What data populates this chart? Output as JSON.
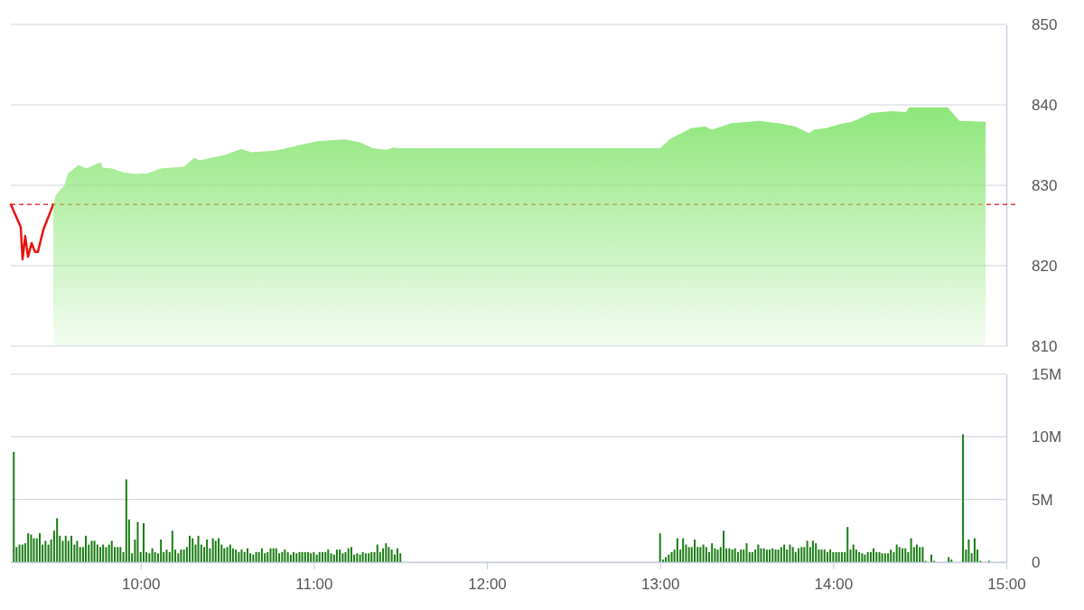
{
  "chart_data": [
    {
      "type": "area",
      "xlim": [
        9.25,
        15
      ],
      "ylim": [
        810,
        850
      ],
      "yticks": [
        810,
        820,
        830,
        840,
        850
      ],
      "grid": "y",
      "tick_labels": "y",
      "ref_lines": [
        {
          "axis": "y",
          "value": 827.6,
          "color": "#e53935",
          "line_style": "dashed"
        }
      ],
      "series": [
        {
          "type": "line",
          "color": "#e8120c",
          "x": [
            9.25,
            9.307,
            9.318,
            9.333,
            9.349,
            9.37,
            9.39,
            9.406,
            9.438,
            9.495
          ],
          "values": [
            827.6,
            824.8,
            820.8,
            823.7,
            821.1,
            822.8,
            821.7,
            821.7,
            824.5,
            827.6
          ]
        },
        {
          "color": "#8ee67a",
          "x": [
            9.495,
            9.51,
            9.56,
            9.58,
            9.64,
            9.69,
            9.77,
            9.78,
            9.83,
            9.9,
            9.97,
            10.04,
            10.12,
            10.25,
            10.31,
            10.34,
            10.49,
            10.58,
            10.64,
            10.77,
            10.82,
            10.94,
            11.03,
            11.18,
            11.27,
            11.34,
            11.42,
            11.46,
            11.49,
            13.0,
            13.06,
            13.18,
            13.26,
            13.3,
            13.41,
            13.57,
            13.69,
            13.78,
            13.86,
            13.89,
            13.96,
            14.04,
            14.11,
            14.15,
            14.22,
            14.34,
            14.42,
            14.44,
            14.66,
            14.73,
            14.88
          ],
          "values": [
            827.6,
            828.8,
            830.0,
            831.5,
            832.5,
            832.1,
            832.9,
            832.2,
            832.1,
            831.6,
            831.4,
            831.5,
            832.1,
            832.3,
            833.4,
            833.1,
            833.8,
            834.5,
            834.1,
            834.3,
            834.5,
            835.1,
            835.5,
            835.7,
            835.3,
            834.6,
            834.4,
            834.7,
            834.6,
            834.6,
            835.8,
            837.1,
            837.3,
            836.9,
            837.7,
            838.0,
            837.7,
            837.3,
            836.5,
            836.9,
            837.1,
            837.6,
            837.9,
            838.3,
            839.0,
            839.2,
            839.1,
            839.7,
            839.7,
            838.0,
            837.9
          ]
        }
      ]
    },
    {
      "type": "bar",
      "xlim": [
        9.25,
        15
      ],
      "xticks": [
        {
          "value": 10,
          "label": "10:00"
        },
        {
          "value": 11,
          "label": "11:00"
        },
        {
          "value": 12,
          "label": "12:00"
        },
        {
          "value": 13,
          "label": "13:00"
        },
        {
          "value": 14,
          "label": "14:00"
        },
        {
          "value": 15,
          "label": "15:00"
        }
      ],
      "ylim": [
        0,
        15
      ],
      "yticks": [
        0,
        {
          "value": 5,
          "label": "5M"
        },
        {
          "value": 10,
          "label": "10M"
        },
        {
          "value": 15,
          "label": "15M"
        }
      ],
      "grid": "y",
      "series": [
        {
          "color": "#1a7d14",
          "x": [
            9.267,
            9.283,
            9.3,
            9.317,
            9.333,
            9.35,
            9.367,
            9.383,
            9.4,
            9.417,
            9.433,
            9.45,
            9.467,
            9.483,
            9.5,
            9.517,
            9.533,
            9.55,
            9.567,
            9.583,
            9.6,
            9.617,
            9.633,
            9.65,
            9.667,
            9.683,
            9.7,
            9.717,
            9.733,
            9.75,
            9.767,
            9.783,
            9.8,
            9.817,
            9.833,
            9.85,
            9.867,
            9.883,
            9.9,
            9.917,
            9.933,
            9.95,
            9.967,
            9.983,
            10,
            10.017,
            10.033,
            10.05,
            10.067,
            10.083,
            10.1,
            10.117,
            10.133,
            10.15,
            10.167,
            10.183,
            10.2,
            10.217,
            10.233,
            10.25,
            10.267,
            10.283,
            10.3,
            10.317,
            10.333,
            10.35,
            10.367,
            10.383,
            10.4,
            10.417,
            10.433,
            10.45,
            10.467,
            10.483,
            10.5,
            10.517,
            10.533,
            10.55,
            10.567,
            10.583,
            10.6,
            10.617,
            10.633,
            10.65,
            10.667,
            10.683,
            10.7,
            10.717,
            10.733,
            10.75,
            10.767,
            10.783,
            10.8,
            10.817,
            10.833,
            10.85,
            10.867,
            10.883,
            10.9,
            10.917,
            10.933,
            10.95,
            10.967,
            10.983,
            11,
            11.017,
            11.033,
            11.05,
            11.067,
            11.083,
            11.1,
            11.117,
            11.133,
            11.15,
            11.167,
            11.183,
            11.2,
            11.217,
            11.233,
            11.25,
            11.267,
            11.283,
            11.3,
            11.317,
            11.333,
            11.35,
            11.367,
            11.383,
            11.4,
            11.417,
            11.433,
            11.45,
            11.467,
            11.483,
            11.5,
            13,
            13.017,
            13.033,
            13.05,
            13.067,
            13.083,
            13.1,
            13.117,
            13.133,
            13.15,
            13.167,
            13.183,
            13.2,
            13.217,
            13.233,
            13.25,
            13.267,
            13.283,
            13.3,
            13.317,
            13.333,
            13.35,
            13.367,
            13.383,
            13.4,
            13.417,
            13.433,
            13.45,
            13.467,
            13.483,
            13.5,
            13.517,
            13.533,
            13.55,
            13.567,
            13.583,
            13.6,
            13.617,
            13.633,
            13.65,
            13.667,
            13.683,
            13.7,
            13.717,
            13.733,
            13.75,
            13.767,
            13.783,
            13.8,
            13.817,
            13.833,
            13.85,
            13.867,
            13.883,
            13.9,
            13.917,
            13.933,
            13.95,
            13.967,
            13.983,
            14,
            14.017,
            14.033,
            14.05,
            14.067,
            14.083,
            14.1,
            14.117,
            14.133,
            14.15,
            14.167,
            14.183,
            14.2,
            14.217,
            14.233,
            14.25,
            14.267,
            14.283,
            14.3,
            14.317,
            14.333,
            14.35,
            14.367,
            14.383,
            14.4,
            14.417,
            14.433,
            14.45,
            14.467,
            14.483,
            14.5,
            14.517,
            14.533,
            14.567,
            14.583,
            14.667,
            14.683,
            14.75,
            14.767,
            14.783,
            14.8,
            14.817,
            14.833,
            14.85,
            14.9
          ],
          "values": [
            8.8,
            1.2,
            1.4,
            1.4,
            1.5,
            2.3,
            2.2,
            1.9,
            1.9,
            2.3,
            1.4,
            1.7,
            1.4,
            1.8,
            2.5,
            3.5,
            2.1,
            1.7,
            2.1,
            1.7,
            2.1,
            1.4,
            1.7,
            1.2,
            1.2,
            2.1,
            1.4,
            1.7,
            1.7,
            1.4,
            1.2,
            1.4,
            1.2,
            1.4,
            1.7,
            1.2,
            1.2,
            1.2,
            0.8,
            6.6,
            3.4,
            0.7,
            1.8,
            3.2,
            0.8,
            3.1,
            0.8,
            0.7,
            1.1,
            0.8,
            0.7,
            1.8,
            0.8,
            1.0,
            0.8,
            2.5,
            1.0,
            0.7,
            1.0,
            1.0,
            1.2,
            2.1,
            1.9,
            1.4,
            2.1,
            1.4,
            1.2,
            1.8,
            1.1,
            1.9,
            1.7,
            1.9,
            1.4,
            1.1,
            1.2,
            1.4,
            1.1,
            1.0,
            0.8,
            1.0,
            0.8,
            1.1,
            0.7,
            0.6,
            0.8,
            0.8,
            1.1,
            0.7,
            0.8,
            1.1,
            1.1,
            1.1,
            0.7,
            0.8,
            1.0,
            0.8,
            0.6,
            0.8,
            0.7,
            0.8,
            0.8,
            0.8,
            0.8,
            0.7,
            0.8,
            0.6,
            0.8,
            0.8,
            0.8,
            1.0,
            0.7,
            0.6,
            1.0,
            1.0,
            0.7,
            0.8,
            1.1,
            1.2,
            0.6,
            0.7,
            0.6,
            0.8,
            0.7,
            0.7,
            0.8,
            0.8,
            1.4,
            0.8,
            1.1,
            1.5,
            1.2,
            1.0,
            0.6,
            1.1,
            0.7,
            2.3,
            0.2,
            0.4,
            0.6,
            0.8,
            1.0,
            1.9,
            1.0,
            1.9,
            1.4,
            1.2,
            1.2,
            1.8,
            1.2,
            1.2,
            1.4,
            1.2,
            0.8,
            1.5,
            1.1,
            1.0,
            1.2,
            2.5,
            1.1,
            1.1,
            1.0,
            1.1,
            0.8,
            1.0,
            1.0,
            1.5,
            0.8,
            0.8,
            1.0,
            1.4,
            1.1,
            1.1,
            1.0,
            1.0,
            1.1,
            1.0,
            1.0,
            1.2,
            1.4,
            1.0,
            1.4,
            1.2,
            0.8,
            1.1,
            1.2,
            1.2,
            1.7,
            1.2,
            1.7,
            1.5,
            1.0,
            1.0,
            1.0,
            0.8,
            1.0,
            0.8,
            0.8,
            0.8,
            0.8,
            0.8,
            2.8,
            1.0,
            1.4,
            1.0,
            0.8,
            0.7,
            0.6,
            0.8,
            0.8,
            1.1,
            0.8,
            0.8,
            0.7,
            0.7,
            0.7,
            1.0,
            0.8,
            1.4,
            1.2,
            1.1,
            1.1,
            0.8,
            1.9,
            1.2,
            1.4,
            1.2,
            1.2,
            0.1,
            0.6,
            0.1,
            0.4,
            0.2,
            10.2,
            1.0,
            1.8,
            0.7,
            1.9,
            1.0,
            0.1,
            0.1
          ]
        }
      ]
    }
  ]
}
